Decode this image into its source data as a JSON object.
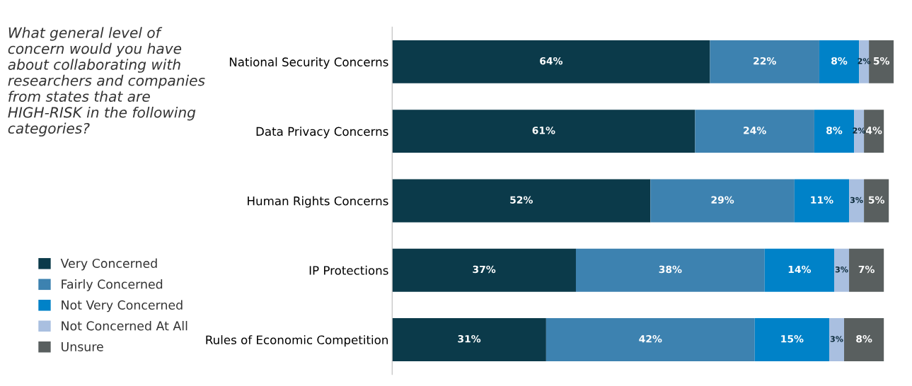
{
  "chart_data": {
    "type": "bar",
    "orientation": "horizontal",
    "stacked": true,
    "legend": "left",
    "tick_labels": "y",
    "grid": false,
    "title": "What general level of concern would you have about collaborating with researchers and companies from states that are HIGH-RISK in the following categories?",
    "categories": [
      "National Security Concerns",
      "Data Privacy Concerns",
      "Human Rights Concerns",
      "IP Protections",
      "Rules of Economic Competition"
    ],
    "series": [
      {
        "name": "Very Concerned",
        "color": "#0b3a4a",
        "values": [
          64,
          61,
          52,
          37,
          31
        ],
        "value_labels": [
          "64%",
          "61%",
          "52%",
          "37%",
          "31%"
        ]
      },
      {
        "name": "Fairly Concerned",
        "color": "#3d82b0",
        "values": [
          22,
          24,
          29,
          38,
          42
        ],
        "value_labels": [
          "22%",
          "24%",
          "29%",
          "38%",
          "42%"
        ]
      },
      {
        "name": "Not Very Concerned",
        "color": "#0082c8",
        "values": [
          8,
          8,
          11,
          14,
          15
        ],
        "value_labels": [
          "8%",
          "8%",
          "11%",
          "14%",
          "15%"
        ]
      },
      {
        "name": "Not Concerned At All",
        "color": "#a9bfe0",
        "values": [
          2,
          2,
          3,
          3,
          3
        ],
        "value_labels": [
          "2%",
          "2%",
          "3%",
          "3%",
          "3%"
        ]
      },
      {
        "name": "Unsure",
        "color": "#595f5f",
        "values": [
          5,
          4,
          5,
          7,
          8
        ],
        "value_labels": [
          "5%",
          "4%",
          "5%",
          "7%",
          "8%"
        ]
      }
    ]
  }
}
